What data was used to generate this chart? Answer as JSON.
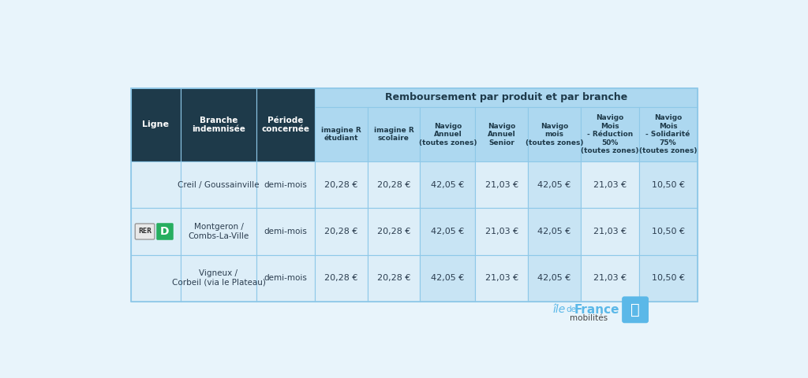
{
  "bg_color": "#e8f4fb",
  "dark_header_bg": "#1e3a4a",
  "dark_header_text": "#ffffff",
  "light_header_bg": "#add8f0",
  "light_header_text": "#1e3a4a",
  "data_row_bg": "#ddeef8",
  "data_col_alt_bg": "#c8e4f4",
  "data_text_color": "#2c3e50",
  "grid_color": "#8ec8e8",
  "col_headers_row1": "Remboursement par produit et par branche",
  "col_headers": [
    "Ligne",
    "Branche\nindemnisée",
    "Période\nconcernée",
    "imagine R\nétudiant",
    "imagine R\nscolaire",
    "Navigo\nAnnuel\n(toutes zones)",
    "Navigo\nAnnuel\nSenior",
    "Navigo\nmois\n(toutes zones)",
    "Navigo\nMois\n- Réduction\n50%\n(toutes zones)",
    "Navigo\nMois\n- Solidarité\n75%\n(toutes zones)"
  ],
  "rows": [
    {
      "branche": "Creil / Goussainville",
      "periode": "demi-mois",
      "vals": [
        "20,28 €",
        "20,28 €",
        "42,05 €",
        "21,03 €",
        "42,05 €",
        "21,03 €",
        "10,50 €"
      ]
    },
    {
      "branche": "Montgeron /\nCombs-La-Ville",
      "periode": "demi-mois",
      "vals": [
        "20,28 €",
        "20,28 €",
        "42,05 €",
        "21,03 €",
        "42,05 €",
        "21,03 €",
        "10,50 €"
      ]
    },
    {
      "branche": "Vigneux /\nCorbeil (via le Plateau)",
      "periode": "demi-mois",
      "vals": [
        "20,28 €",
        "20,28 €",
        "42,05 €",
        "21,03 €",
        "42,05 €",
        "21,03 €",
        "10,50 €"
      ]
    }
  ],
  "rer_bg": "#e8e8e8",
  "rer_border": "#999999",
  "line_bg": "#27ae60",
  "logo_color": "#5bb8e8",
  "logo_dark": "#444444"
}
